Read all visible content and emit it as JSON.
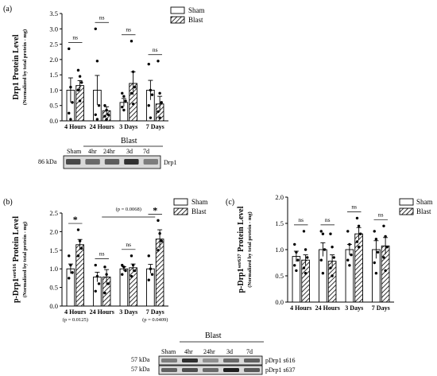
{
  "colors": {
    "axis": "#000000",
    "sham_fill": "#ffffff",
    "blast_fill": "hatch-diagonal",
    "bar_stroke": "#000000"
  },
  "legend": {
    "sham": "Sham",
    "blast": "Blast"
  },
  "chart_data": [
    {
      "panel": "(a)",
      "type": "bar",
      "ylabel": "Drp1 Protein Level",
      "ylabel_sub": "(Normalized by total protein - mg)",
      "categories": [
        "4 Hours",
        "24 Hours",
        "3 Days",
        "7 Days"
      ],
      "ylim": [
        0,
        3.5
      ],
      "yticks": [
        "0.0",
        "0.5",
        "1.0",
        "1.5",
        "2.0",
        "2.5",
        "3.0",
        "3.5"
      ],
      "series": [
        {
          "name": "Sham",
          "values": [
            1.0,
            1.0,
            0.6,
            1.0
          ],
          "errors": [
            0.4,
            0.48,
            0.13,
            0.32
          ],
          "points": [
            [
              2.35,
              1.1,
              0.6,
              0.25,
              0.05
            ],
            [
              3.0,
              1.95,
              0.5,
              0.2,
              0.05
            ],
            [
              0.9,
              0.8,
              0.65,
              0.45,
              0.35
            ],
            [
              1.85,
              1.0,
              0.85,
              0.5,
              0.1
            ]
          ]
        },
        {
          "name": "Blast",
          "values": [
            1.15,
            0.33,
            1.22,
            0.55
          ],
          "errors": [
            0.16,
            0.13,
            0.38,
            0.25
          ],
          "points": [
            [
              1.65,
              1.45,
              1.25,
              1.0,
              0.65
            ],
            [
              0.5,
              0.35,
              0.2,
              0.15,
              0.05
            ],
            [
              2.6,
              1.6,
              1.1,
              0.9,
              0.55
            ],
            [
              1.95,
              0.9,
              0.6,
              0.3,
              0.1
            ]
          ]
        }
      ],
      "annotations": [
        "ns",
        "ns",
        "ns",
        "ns"
      ]
    },
    {
      "panel": "(b)",
      "type": "bar",
      "ylabel_main": "p-Drp1",
      "ylabel_sup": "ser616",
      "ylabel_end": " Protein Level",
      "ylabel_sub": "(Normalized by total protein - mg)",
      "categories": [
        "4 Hours",
        "24 Hours",
        "3 Days",
        "7 Days"
      ],
      "ylim": [
        0,
        2.5
      ],
      "yticks": [
        "0.0",
        "0.5",
        "1.0",
        "1.5",
        "2.0",
        "2.5"
      ],
      "series": [
        {
          "name": "Sham",
          "values": [
            1.0,
            0.78,
            1.0,
            1.0
          ],
          "errors": [
            0.13,
            0.13,
            0.06,
            0.12
          ],
          "points": [
            [
              1.35,
              1.1,
              0.9,
              0.75
            ],
            [
              1.1,
              0.8,
              0.6,
              0.4
            ],
            [
              1.1,
              1.05,
              0.95,
              0.85
            ],
            [
              1.35,
              1.0,
              0.85,
              0.7
            ]
          ]
        },
        {
          "name": "Blast",
          "values": [
            1.65,
            0.78,
            1.03,
            1.8
          ],
          "errors": [
            0.14,
            0.2,
            0.1,
            0.25
          ],
          "points": [
            [
              2.05,
              1.75,
              1.55,
              1.35
            ],
            [
              1.05,
              0.85,
              0.6,
              0.35
            ],
            [
              1.35,
              1.1,
              0.95,
              0.8
            ],
            [
              2.3,
              1.95,
              1.75,
              1.5
            ]
          ]
        }
      ],
      "annotations": [
        "*",
        "ns",
        "ns",
        "*"
      ],
      "pvalues": [
        "(p = 0.0125)",
        "",
        "",
        "(p = 0.0409)"
      ],
      "bracket_label": "(p = 0.0068)"
    },
    {
      "panel": "(c)",
      "type": "bar",
      "ylabel_main": "p-Drp1",
      "ylabel_sup": "ser637",
      "ylabel_end": " Protein Level",
      "ylabel_sub": "(Normalized by total protein - mg)",
      "categories": [
        "4 Hours",
        "24 Hours",
        "3 Days",
        "7 Days"
      ],
      "ylim": [
        0,
        2.0
      ],
      "yticks": [
        "0.0",
        "0.5",
        "1.0",
        "1.5",
        "2.0"
      ],
      "series": [
        {
          "name": "Sham",
          "values": [
            0.87,
            1.0,
            1.0,
            1.0
          ],
          "errors": [
            0.1,
            0.13,
            0.1,
            0.17
          ],
          "points": [
            [
              1.1,
              0.95,
              0.8,
              0.7,
              0.6
            ],
            [
              1.35,
              1.3,
              1.0,
              0.8,
              0.55
            ],
            [
              1.35,
              1.1,
              0.9,
              0.8,
              0.7
            ],
            [
              1.35,
              1.2,
              0.95,
              0.75,
              0.55
            ]
          ]
        },
        {
          "name": "Blast",
          "values": [
            0.8,
            0.78,
            1.3,
            1.07
          ],
          "errors": [
            0.1,
            0.12,
            0.12,
            0.16
          ],
          "points": [
            [
              1.35,
              1.0,
              0.85,
              0.65,
              0.55
            ],
            [
              1.3,
              1.05,
              0.85,
              0.65,
              0.5
            ],
            [
              1.6,
              1.45,
              1.3,
              1.15,
              1.05
            ],
            [
              1.45,
              1.25,
              1.05,
              0.85,
              0.6
            ]
          ]
        }
      ],
      "annotations": [
        "ns",
        "ns",
        "ns",
        "ns"
      ]
    }
  ],
  "blot_top": {
    "group_label": "Blast",
    "lanes": [
      "Sham",
      "4hr",
      "24hr",
      "3d",
      "7d"
    ],
    "kda": "86 kDa",
    "band_label": "Drp1",
    "intensity": [
      0.72,
      0.55,
      0.62,
      0.85,
      0.45
    ]
  },
  "blot_bottom": {
    "group_label": "Blast",
    "lanes": [
      "Sham",
      "4hr",
      "24hr",
      "3d",
      "7d"
    ],
    "rows": [
      {
        "kda": "57 kDa",
        "label": "pDrp1 s616",
        "intensity": [
          0.45,
          0.85,
          0.35,
          0.55,
          0.6
        ]
      },
      {
        "kda": "57 kDa",
        "label": "pDrp1 s637",
        "intensity": [
          0.6,
          0.7,
          0.55,
          0.95,
          0.65
        ]
      }
    ]
  }
}
